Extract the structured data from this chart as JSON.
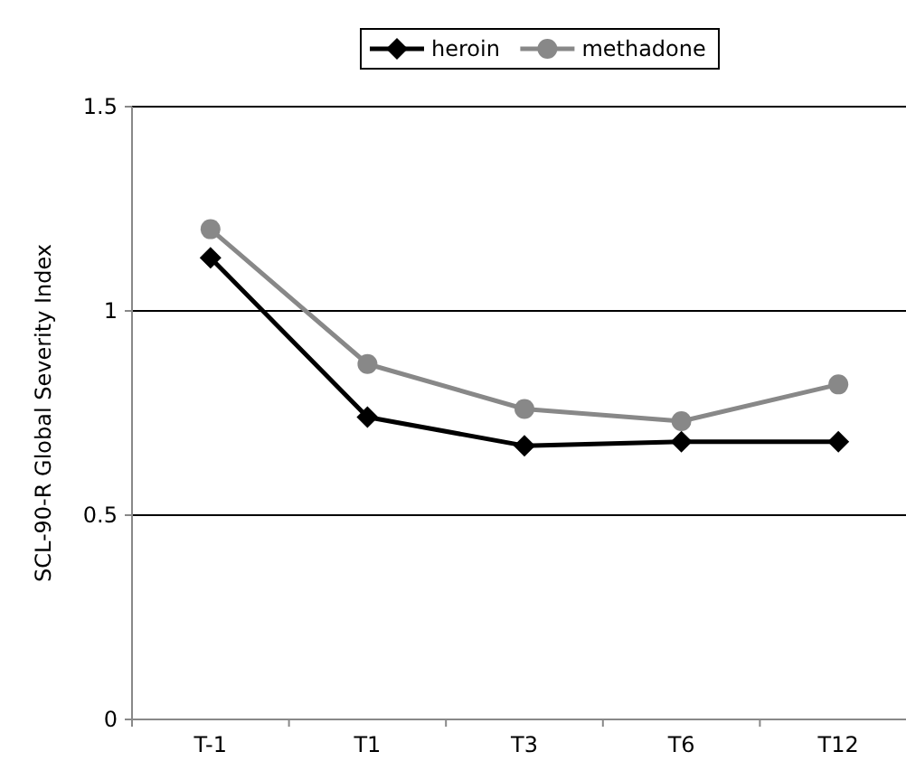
{
  "chart_data": {
    "type": "line",
    "categories": [
      "T-1",
      "T1",
      "T3",
      "T6",
      "T12"
    ],
    "series": [
      {
        "name": "heroin",
        "color": "#000000",
        "marker": "diamond",
        "values": [
          1.13,
          0.74,
          0.67,
          0.68,
          0.68
        ]
      },
      {
        "name": "methadone",
        "color": "#888888",
        "marker": "circle",
        "values": [
          1.2,
          0.87,
          0.76,
          0.73,
          0.82
        ]
      }
    ],
    "ylabel": "SCL-90-R Global Severity Index",
    "ylim": [
      0,
      1.5
    ],
    "yticks": [
      0,
      0.5,
      1,
      1.5
    ],
    "grid": "y",
    "legend": "top"
  }
}
